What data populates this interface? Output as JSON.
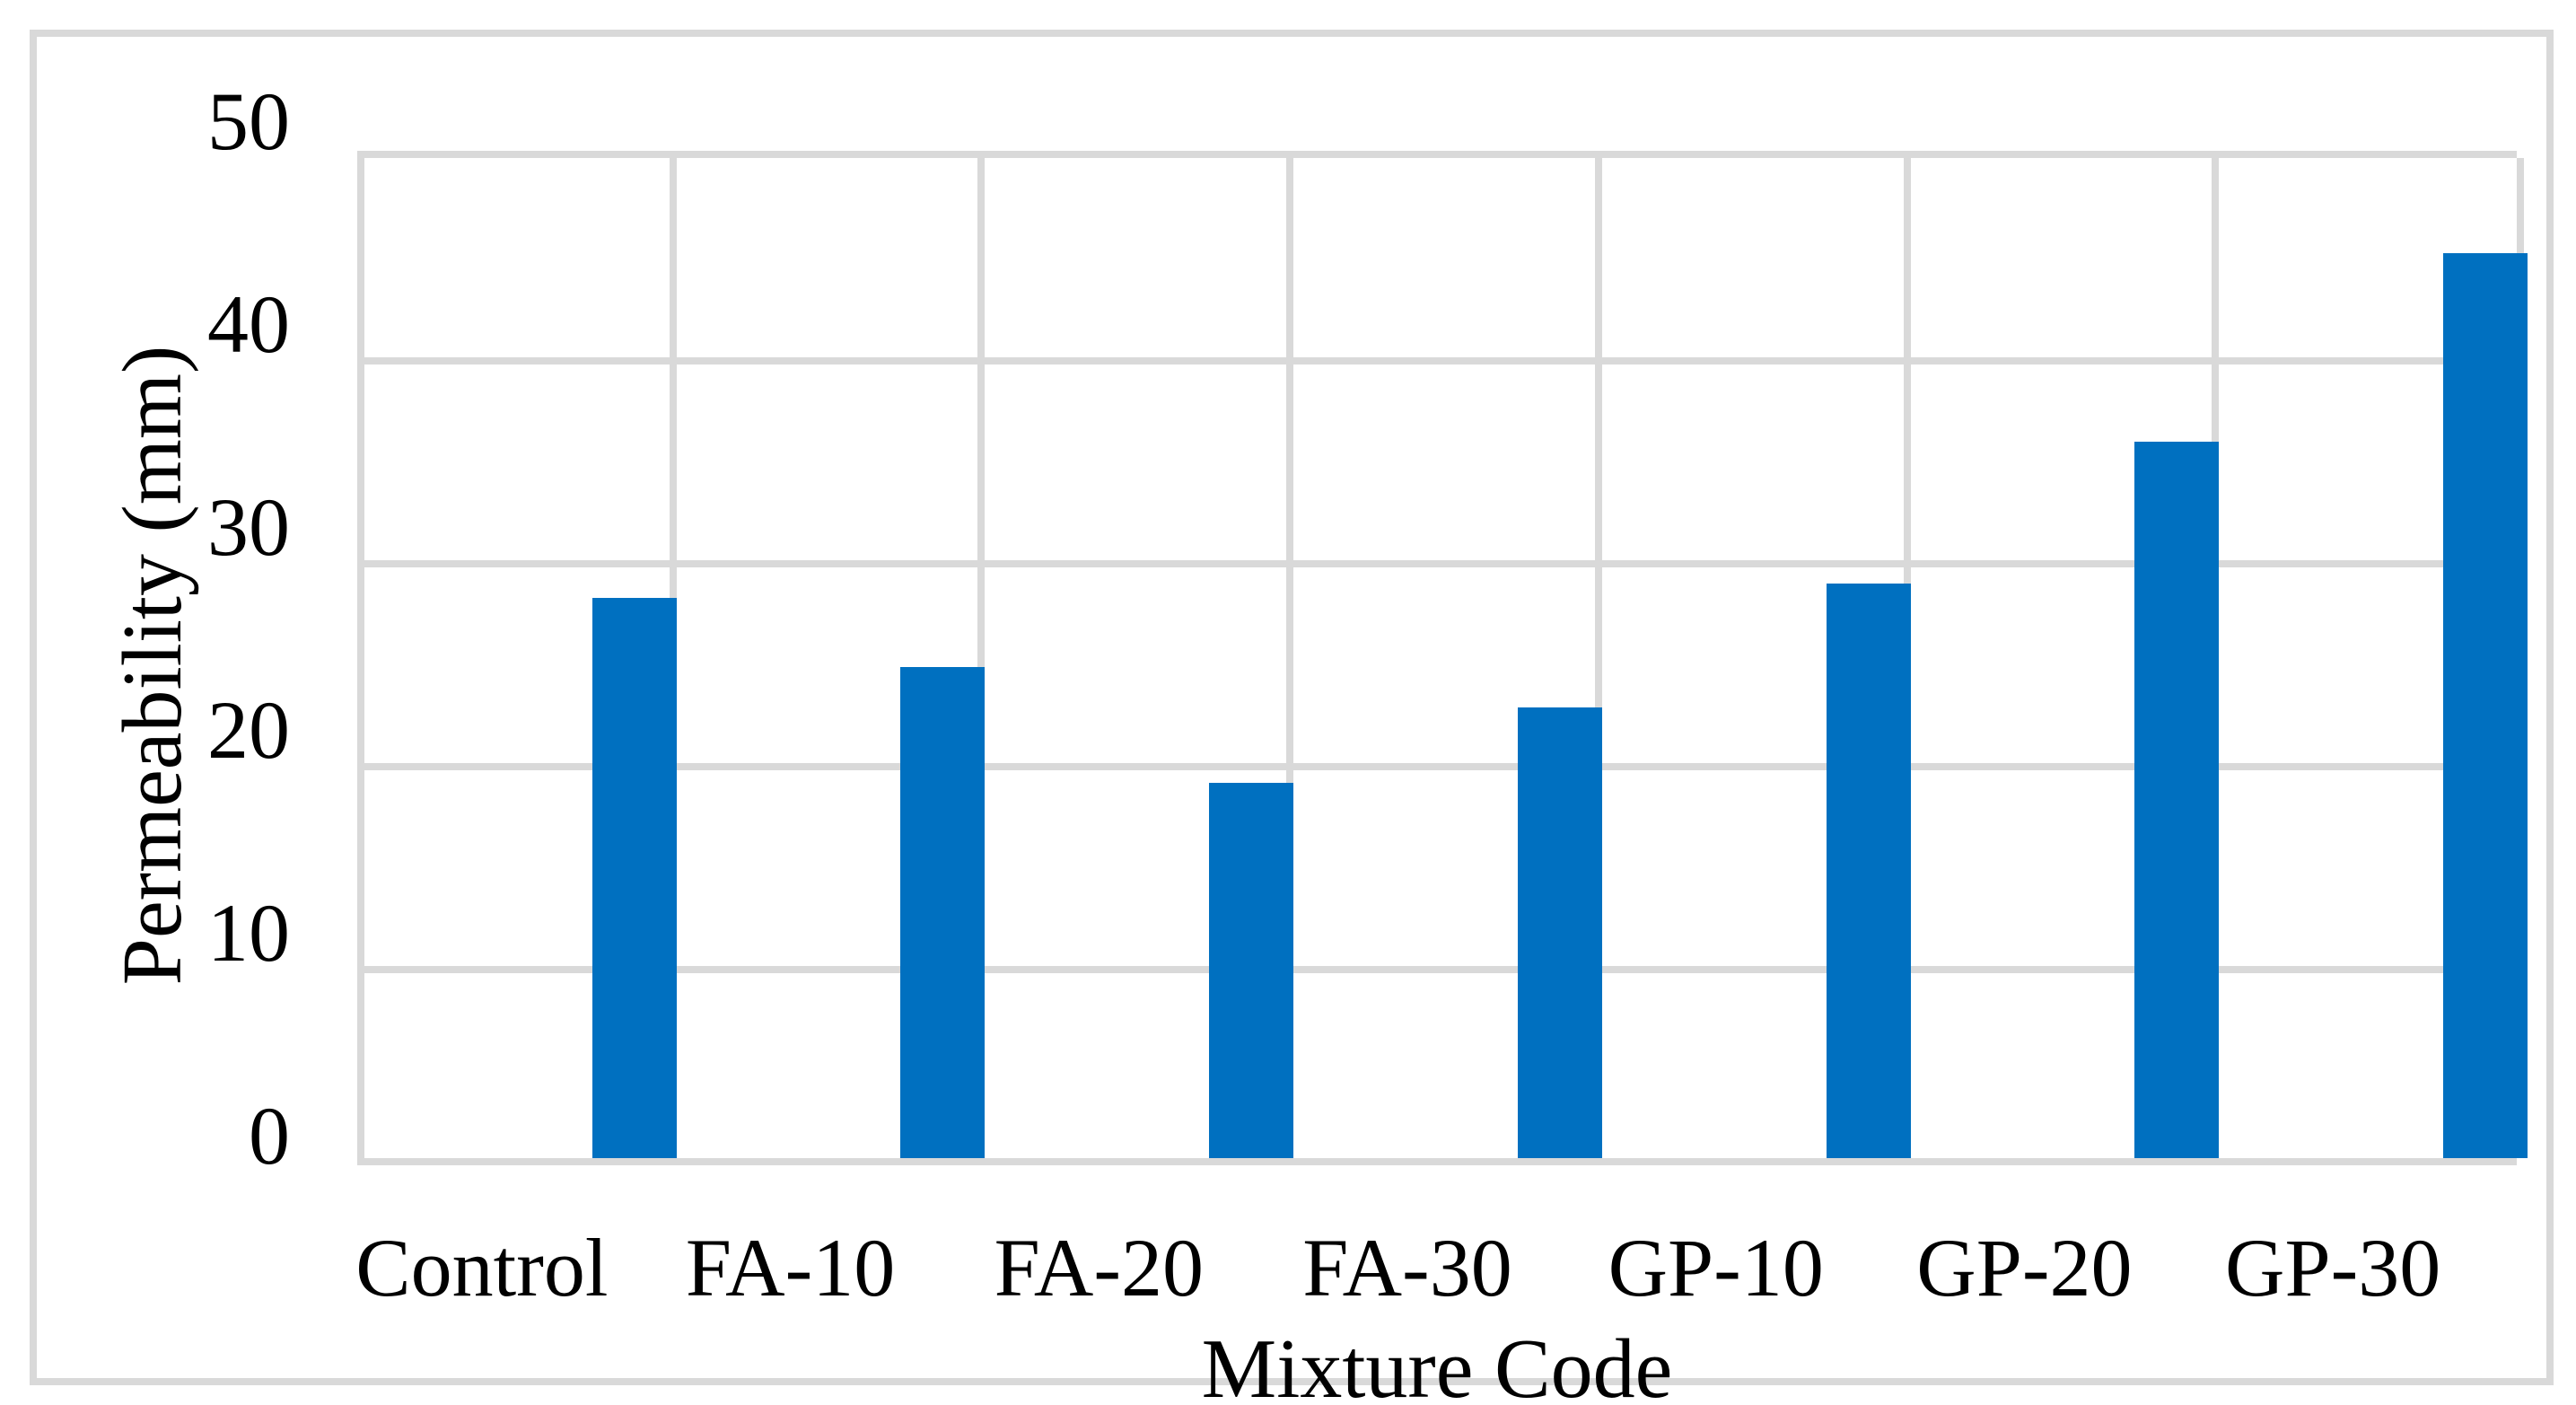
{
  "chart_data": {
    "type": "bar",
    "title": "",
    "categories": [
      "Control",
      "FA-10",
      "FA-20",
      "FA-30",
      "GP-10",
      "GP-20",
      "GP-30"
    ],
    "values": [
      27.6,
      24.2,
      18.5,
      22.2,
      28.3,
      35.3,
      44.6
    ],
    "series_name": "Permeability",
    "xlabel": "Mixture Code",
    "ylabel": "Permeability (mm)",
    "ylim": [
      0,
      50
    ],
    "yticks": [
      0,
      10,
      20,
      30,
      40,
      50
    ],
    "grid": true,
    "legend_position": "none",
    "bar_color": "#0070C0",
    "gridline_color": "#D9D9D9",
    "figure_border_color": "#D9D9D9",
    "text_color": "#000000",
    "background_color": "#FFFFFF"
  }
}
